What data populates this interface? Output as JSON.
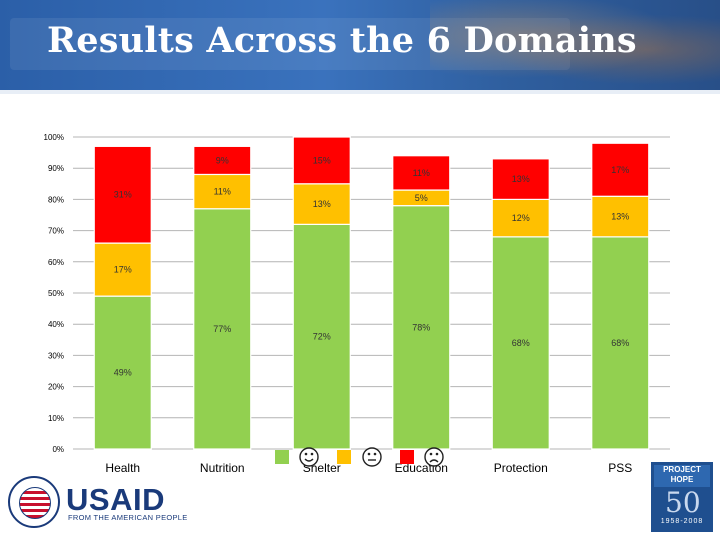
{
  "header": {
    "title": "Results Across the 6 Domains"
  },
  "chart_data": {
    "type": "bar",
    "stacked": true,
    "categories": [
      "Health",
      "Nutrition",
      "Shelter",
      "Education",
      "Protection",
      "PSS"
    ],
    "series": [
      {
        "name": "Good",
        "color": "#92d050",
        "values": [
          49,
          77,
          72,
          78,
          68,
          68
        ]
      },
      {
        "name": "Fair",
        "color": "#ffc000",
        "values": [
          17,
          11,
          13,
          5,
          12,
          13
        ]
      },
      {
        "name": "Poor",
        "color": "#ff0000",
        "values": [
          31,
          9,
          15,
          11,
          13,
          17
        ]
      }
    ],
    "data_labels": [
      [
        "49%",
        "77%",
        "72%",
        "78%",
        "68%",
        "68%"
      ],
      [
        "17%",
        "11%",
        "13%",
        "5%",
        "12%",
        "13%"
      ],
      [
        "31%",
        "9%",
        "15%",
        "11%",
        "13%",
        "17%"
      ]
    ],
    "y_ticks": [
      "0%",
      "10%",
      "20%",
      "30%",
      "40%",
      "50%",
      "60%",
      "70%",
      "80%",
      "90%",
      "100%"
    ],
    "ylim": [
      0,
      100
    ],
    "grid": true,
    "legend": {
      "position": "bottom-center",
      "symbols": [
        "happy-face",
        "neutral-face",
        "sad-face"
      ]
    }
  },
  "footer": {
    "usaid_name": "USAID",
    "usaid_tagline": "FROM THE AMERICAN PEOPLE",
    "hope_logo_top": "PROJECT HOPE",
    "hope_logo_number": "50",
    "hope_logo_years": "1958-2008"
  }
}
